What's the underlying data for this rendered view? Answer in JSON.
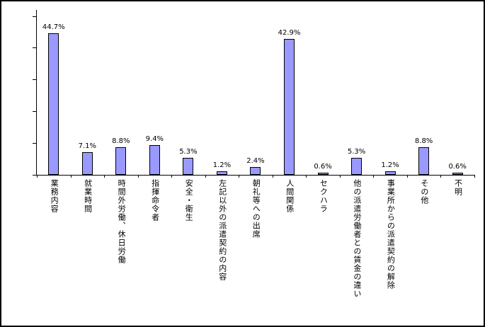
{
  "chart_data": {
    "type": "bar",
    "categories": [
      "業務内容",
      "就業時間",
      "時間外労働、休日労働",
      "指揮命令者",
      "安全・衛生",
      "左記以外の派遣契約の内容",
      "朝礼等への出席",
      "人間関係",
      "セクハラ",
      "他の派遣労働者との賃金の違い",
      "事業所からの派遣契約の解除",
      "その他",
      "不明"
    ],
    "values": [
      44.7,
      7.1,
      8.8,
      9.4,
      5.3,
      1.2,
      2.4,
      42.9,
      0.6,
      5.3,
      1.2,
      8.8,
      0.6
    ],
    "value_labels": [
      "44.7%",
      "7.1%",
      "8.8%",
      "9.4%",
      "5.3%",
      "1.2%",
      "2.4%",
      "42.9%",
      "0.6%",
      "5.3%",
      "1.2%",
      "8.8%",
      "0.6%"
    ],
    "title": "",
    "xlabel": "",
    "ylabel": "",
    "ylim": [
      0,
      50
    ],
    "y_tick_step": 10,
    "grid": false,
    "legend": false,
    "bar_color": "#9999FF",
    "bar_border_color": "#000000",
    "axis_color": "#000000",
    "frame_border_color": "#000000",
    "background_color": "#FFFFFF"
  }
}
